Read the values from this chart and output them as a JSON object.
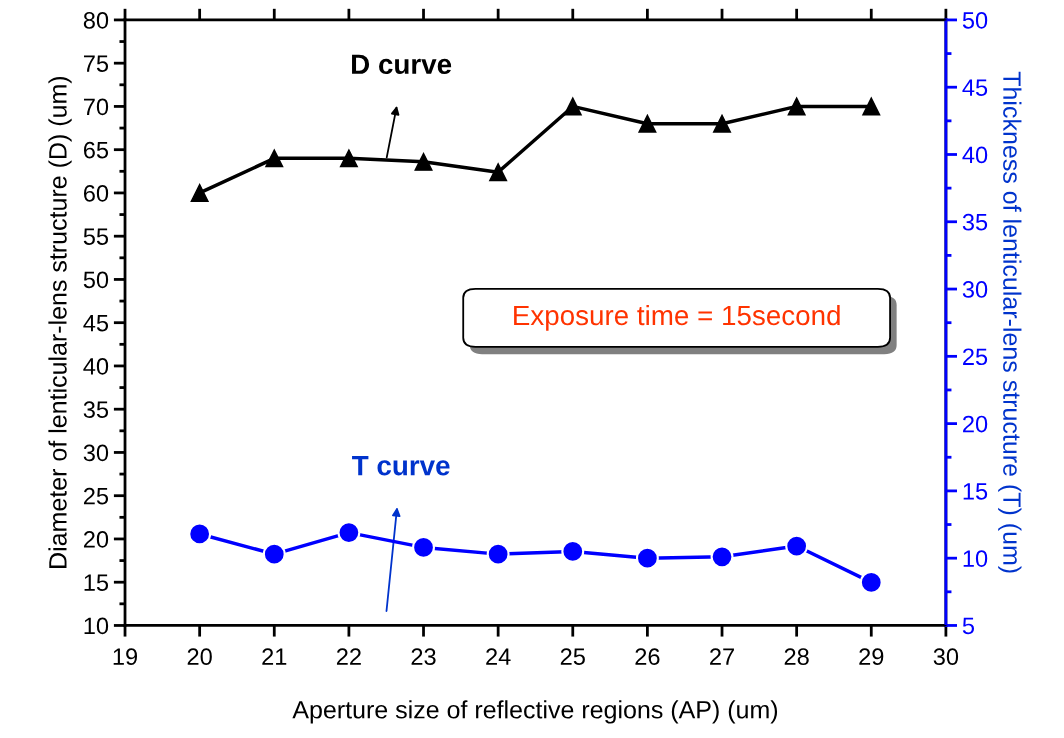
{
  "chart_data": {
    "type": "line",
    "xlabel": "Aperture size of reflective regions (AP) (um)",
    "ylabel": "Diameter of lenticular-lens structure (D) (um)",
    "y2label": "Thickness of lenticular-lens structure (T) (um)",
    "x": [
      20,
      21,
      22,
      23,
      24,
      25,
      26,
      27,
      28,
      29
    ],
    "series": [
      {
        "name": "D curve",
        "color": "#000000",
        "marker": "triangle",
        "values": [
          60,
          64,
          64,
          63.6,
          62.4,
          70,
          68,
          68,
          70,
          70
        ]
      },
      {
        "name": "T curve",
        "color": "#0000ff",
        "marker": "circle",
        "axis": "y2",
        "values": [
          11.8,
          10.3,
          11.9,
          10.8,
          10.3,
          10.5,
          10.0,
          10.1,
          10.9,
          8.2
        ]
      }
    ],
    "xlim": [
      19,
      30
    ],
    "xticks": [
      19,
      20,
      21,
      22,
      23,
      24,
      25,
      26,
      27,
      28,
      29,
      30
    ],
    "ylim": [
      10,
      80
    ],
    "yticks": [
      10,
      15,
      20,
      25,
      30,
      35,
      40,
      45,
      50,
      55,
      60,
      65,
      70,
      75,
      80
    ],
    "y2lim": [
      5,
      50
    ],
    "y2ticks": [
      5,
      10,
      15,
      20,
      25,
      30,
      35,
      40,
      45,
      50
    ],
    "annotations": [
      "Exposure time = 15second"
    ],
    "grid": false,
    "line_style": "solid"
  }
}
